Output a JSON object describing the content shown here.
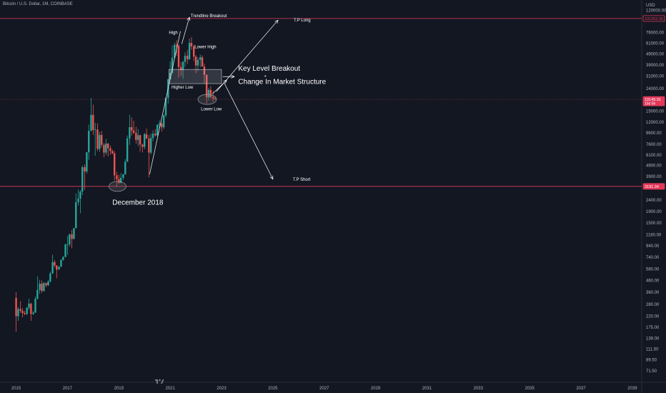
{
  "header": {
    "symbol_title": "Bitcoin / U.S. Dollar, 1M, COINBASE"
  },
  "colors": {
    "background": "#131722",
    "up": "#26a69a",
    "down": "#ef5350",
    "level_line": "#e3385a",
    "current_line": "#7a2f3a",
    "annotation": "#ffffff",
    "axis_text": "#b2b5be"
  },
  "chart_data": {
    "type": "candlestick",
    "y_scale": "log",
    "y_unit": "USD",
    "ylim": [
      62,
      130000
    ],
    "xlim": [
      2014.5,
      2040.2
    ],
    "y_ticks": [
      "120000.00",
      "76000.00",
      "61000.00",
      "49000.00",
      "39000.00",
      "31000.00",
      "24000.00",
      "15000.00",
      "12000.00",
      "9600.00",
      "7600.00",
      "6100.00",
      "4900.00",
      "3900.00",
      "2400.00",
      "1900.00",
      "1500.00",
      "1180.00",
      "940.00",
      "740.00",
      "580.00",
      "460.00",
      "360.00",
      "280.00",
      "220.00",
      "175.00",
      "139.00",
      "111.50",
      "89.50",
      "71.50"
    ],
    "x_ticks": [
      "2015",
      "2017",
      "2019",
      "2021",
      "2023",
      "2025",
      "2027",
      "2029",
      "2031",
      "2033",
      "2035",
      "2037",
      "2039"
    ],
    "price_tags": [
      {
        "label": "101353.06",
        "value": 101353.06,
        "style": "outline"
      },
      {
        "label": "19149.91",
        "sublabel": "15d 5h",
        "value": 19149.91,
        "style": "filled"
      },
      {
        "label": "3191.34",
        "value": 3191.34,
        "style": "filled"
      }
    ],
    "annotations": {
      "high": "High",
      "trendline_breakout": "Trendline Breakout",
      "tp_long": "T.P Long",
      "lower_high": "Lower High",
      "key_level_breakout": "Key Level Breakout",
      "plus": "+",
      "change_in_structure": "Change In Market Structure",
      "higher_low": "Higher Low",
      "lower_low": "Lower Low",
      "tp_short": "T.P Short",
      "december_2018": "December 2018"
    },
    "points": {
      "tp_long": [
        2025.2,
        98000
      ],
      "tp_short": [
        2025.0,
        3700
      ],
      "trend_start": [
        2020.2,
        4100
      ],
      "trend_end": [
        2021.4,
        78000
      ],
      "low_2018": [
        2018.95,
        3190
      ],
      "low_2022": [
        2022.5,
        19149.91
      ],
      "key_box": {
        "x0": 2020.95,
        "x1": 2023.0,
        "y0": 26500,
        "y1": 35500
      }
    },
    "candles": [
      {
        "t": 2015.0,
        "o": 320,
        "h": 360,
        "l": 160,
        "c": 220
      },
      {
        "t": 2015.08,
        "o": 220,
        "h": 265,
        "l": 200,
        "c": 255
      },
      {
        "t": 2015.17,
        "o": 255,
        "h": 300,
        "l": 235,
        "c": 245
      },
      {
        "t": 2015.25,
        "o": 245,
        "h": 260,
        "l": 215,
        "c": 235
      },
      {
        "t": 2015.33,
        "o": 235,
        "h": 245,
        "l": 225,
        "c": 230
      },
      {
        "t": 2015.42,
        "o": 230,
        "h": 265,
        "l": 225,
        "c": 262
      },
      {
        "t": 2015.5,
        "o": 262,
        "h": 315,
        "l": 250,
        "c": 285
      },
      {
        "t": 2015.58,
        "o": 285,
        "h": 290,
        "l": 200,
        "c": 230
      },
      {
        "t": 2015.67,
        "o": 230,
        "h": 245,
        "l": 225,
        "c": 237
      },
      {
        "t": 2015.75,
        "o": 237,
        "h": 330,
        "l": 235,
        "c": 315
      },
      {
        "t": 2015.83,
        "o": 315,
        "h": 500,
        "l": 310,
        "c": 378
      },
      {
        "t": 2015.92,
        "o": 378,
        "h": 465,
        "l": 350,
        "c": 430
      },
      {
        "t": 2016.0,
        "o": 430,
        "h": 460,
        "l": 355,
        "c": 370
      },
      {
        "t": 2016.08,
        "o": 370,
        "h": 445,
        "l": 365,
        "c": 435
      },
      {
        "t": 2016.17,
        "o": 435,
        "h": 440,
        "l": 400,
        "c": 415
      },
      {
        "t": 2016.25,
        "o": 415,
        "h": 465,
        "l": 410,
        "c": 450
      },
      {
        "t": 2016.33,
        "o": 450,
        "h": 550,
        "l": 440,
        "c": 530
      },
      {
        "t": 2016.42,
        "o": 530,
        "h": 780,
        "l": 525,
        "c": 670
      },
      {
        "t": 2016.5,
        "o": 670,
        "h": 700,
        "l": 600,
        "c": 625
      },
      {
        "t": 2016.58,
        "o": 625,
        "h": 630,
        "l": 480,
        "c": 575
      },
      {
        "t": 2016.67,
        "o": 575,
        "h": 615,
        "l": 570,
        "c": 610
      },
      {
        "t": 2016.75,
        "o": 610,
        "h": 710,
        "l": 605,
        "c": 700
      },
      {
        "t": 2016.83,
        "o": 700,
        "h": 760,
        "l": 690,
        "c": 745
      },
      {
        "t": 2016.92,
        "o": 745,
        "h": 980,
        "l": 740,
        "c": 965
      },
      {
        "t": 2017.0,
        "o": 965,
        "h": 1150,
        "l": 780,
        "c": 965
      },
      {
        "t": 2017.08,
        "o": 965,
        "h": 1200,
        "l": 920,
        "c": 1190
      },
      {
        "t": 2017.17,
        "o": 1190,
        "h": 1300,
        "l": 890,
        "c": 1080
      },
      {
        "t": 2017.25,
        "o": 1080,
        "h": 1350,
        "l": 1070,
        "c": 1350
      },
      {
        "t": 2017.33,
        "o": 1350,
        "h": 2760,
        "l": 1340,
        "c": 2300
      },
      {
        "t": 2017.42,
        "o": 2300,
        "h": 3000,
        "l": 2150,
        "c": 2480
      },
      {
        "t": 2017.5,
        "o": 2480,
        "h": 2950,
        "l": 1830,
        "c": 2870
      },
      {
        "t": 2017.58,
        "o": 2870,
        "h": 4900,
        "l": 2670,
        "c": 4740
      },
      {
        "t": 2017.67,
        "o": 4740,
        "h": 5000,
        "l": 2970,
        "c": 4340
      },
      {
        "t": 2017.75,
        "o": 4340,
        "h": 6450,
        "l": 4160,
        "c": 6440
      },
      {
        "t": 2017.83,
        "o": 6440,
        "h": 11400,
        "l": 5500,
        "c": 10000
      },
      {
        "t": 2017.92,
        "o": 10000,
        "h": 19700,
        "l": 10000,
        "c": 13900
      },
      {
        "t": 2018.0,
        "o": 13900,
        "h": 17200,
        "l": 9200,
        "c": 10200
      },
      {
        "t": 2018.08,
        "o": 10200,
        "h": 11800,
        "l": 6000,
        "c": 10300
      },
      {
        "t": 2018.17,
        "o": 10300,
        "h": 11700,
        "l": 6600,
        "c": 6900
      },
      {
        "t": 2018.25,
        "o": 6900,
        "h": 9800,
        "l": 6500,
        "c": 9200
      },
      {
        "t": 2018.33,
        "o": 9200,
        "h": 10000,
        "l": 7100,
        "c": 7500
      },
      {
        "t": 2018.42,
        "o": 7500,
        "h": 7800,
        "l": 5800,
        "c": 6400
      },
      {
        "t": 2018.5,
        "o": 6400,
        "h": 8500,
        "l": 6100,
        "c": 7700
      },
      {
        "t": 2018.58,
        "o": 7700,
        "h": 7800,
        "l": 5900,
        "c": 7000
      },
      {
        "t": 2018.67,
        "o": 7000,
        "h": 7400,
        "l": 6100,
        "c": 6600
      },
      {
        "t": 2018.75,
        "o": 6600,
        "h": 6800,
        "l": 6200,
        "c": 6300
      },
      {
        "t": 2018.83,
        "o": 6300,
        "h": 6600,
        "l": 3600,
        "c": 4000
      },
      {
        "t": 2018.92,
        "o": 4000,
        "h": 4300,
        "l": 3150,
        "c": 3700
      },
      {
        "t": 2019.0,
        "o": 3700,
        "h": 4050,
        "l": 3350,
        "c": 3430
      },
      {
        "t": 2019.08,
        "o": 3430,
        "h": 4200,
        "l": 3390,
        "c": 3800
      },
      {
        "t": 2019.17,
        "o": 3800,
        "h": 4100,
        "l": 3650,
        "c": 4100
      },
      {
        "t": 2019.25,
        "o": 4100,
        "h": 5600,
        "l": 4050,
        "c": 5300
      },
      {
        "t": 2019.33,
        "o": 5300,
        "h": 9100,
        "l": 5300,
        "c": 8570
      },
      {
        "t": 2019.42,
        "o": 8570,
        "h": 13900,
        "l": 7500,
        "c": 10800
      },
      {
        "t": 2019.5,
        "o": 10800,
        "h": 13200,
        "l": 9100,
        "c": 10100
      },
      {
        "t": 2019.58,
        "o": 10100,
        "h": 12300,
        "l": 9400,
        "c": 9600
      },
      {
        "t": 2019.67,
        "o": 9600,
        "h": 10900,
        "l": 7700,
        "c": 8300
      },
      {
        "t": 2019.75,
        "o": 8300,
        "h": 10400,
        "l": 7300,
        "c": 9150
      },
      {
        "t": 2019.83,
        "o": 9150,
        "h": 9300,
        "l": 6500,
        "c": 7550
      },
      {
        "t": 2019.92,
        "o": 7550,
        "h": 7700,
        "l": 6400,
        "c": 7200
      },
      {
        "t": 2020.0,
        "o": 7200,
        "h": 9600,
        "l": 6850,
        "c": 9350
      },
      {
        "t": 2020.08,
        "o": 9350,
        "h": 10500,
        "l": 8450,
        "c": 8550
      },
      {
        "t": 2020.17,
        "o": 8550,
        "h": 9200,
        "l": 3850,
        "c": 6400
      },
      {
        "t": 2020.25,
        "o": 6400,
        "h": 9500,
        "l": 6150,
        "c": 8630
      },
      {
        "t": 2020.33,
        "o": 8630,
        "h": 10100,
        "l": 8100,
        "c": 9450
      },
      {
        "t": 2020.42,
        "o": 9450,
        "h": 10400,
        "l": 8900,
        "c": 9140
      },
      {
        "t": 2020.5,
        "o": 9140,
        "h": 11450,
        "l": 8950,
        "c": 11350
      },
      {
        "t": 2020.58,
        "o": 11350,
        "h": 12450,
        "l": 10550,
        "c": 11650
      },
      {
        "t": 2020.67,
        "o": 11650,
        "h": 12050,
        "l": 9850,
        "c": 10780
      },
      {
        "t": 2020.75,
        "o": 10780,
        "h": 14100,
        "l": 10400,
        "c": 13800
      },
      {
        "t": 2020.83,
        "o": 13800,
        "h": 19900,
        "l": 13200,
        "c": 19700
      },
      {
        "t": 2020.92,
        "o": 19700,
        "h": 29300,
        "l": 17600,
        "c": 29000
      },
      {
        "t": 2021.0,
        "o": 29000,
        "h": 41900,
        "l": 28700,
        "c": 33100
      },
      {
        "t": 2021.08,
        "o": 33100,
        "h": 58300,
        "l": 32400,
        "c": 45200
      },
      {
        "t": 2021.17,
        "o": 45200,
        "h": 61700,
        "l": 45000,
        "c": 58800
      },
      {
        "t": 2021.25,
        "o": 58800,
        "h": 64800,
        "l": 47000,
        "c": 57700
      },
      {
        "t": 2021.33,
        "o": 57700,
        "h": 59500,
        "l": 30000,
        "c": 37300
      },
      {
        "t": 2021.42,
        "o": 37300,
        "h": 41300,
        "l": 31000,
        "c": 35000
      },
      {
        "t": 2021.5,
        "o": 35000,
        "h": 42300,
        "l": 29300,
        "c": 41500
      },
      {
        "t": 2021.58,
        "o": 41500,
        "h": 50500,
        "l": 37300,
        "c": 47100
      },
      {
        "t": 2021.67,
        "o": 47100,
        "h": 52900,
        "l": 39600,
        "c": 43800
      },
      {
        "t": 2021.75,
        "o": 43800,
        "h": 67000,
        "l": 43200,
        "c": 61300
      },
      {
        "t": 2021.83,
        "o": 61300,
        "h": 69000,
        "l": 53200,
        "c": 57000
      },
      {
        "t": 2021.92,
        "o": 57000,
        "h": 59100,
        "l": 42000,
        "c": 46200
      },
      {
        "t": 2022.0,
        "o": 46200,
        "h": 47900,
        "l": 32900,
        "c": 38500
      },
      {
        "t": 2022.08,
        "o": 38500,
        "h": 45800,
        "l": 34300,
        "c": 43200
      },
      {
        "t": 2022.17,
        "o": 43200,
        "h": 48200,
        "l": 37200,
        "c": 45500
      },
      {
        "t": 2022.25,
        "o": 45500,
        "h": 47400,
        "l": 37600,
        "c": 37700
      },
      {
        "t": 2022.33,
        "o": 37700,
        "h": 40000,
        "l": 26700,
        "c": 31800
      },
      {
        "t": 2022.42,
        "o": 31800,
        "h": 31900,
        "l": 17600,
        "c": 19950
      },
      {
        "t": 2022.5,
        "o": 19950,
        "h": 24300,
        "l": 18800,
        "c": 23300
      },
      {
        "t": 2022.58,
        "o": 23300,
        "h": 25200,
        "l": 19600,
        "c": 20050
      },
      {
        "t": 2022.67,
        "o": 20050,
        "h": 22800,
        "l": 18200,
        "c": 19420
      },
      {
        "t": 2022.75,
        "o": 19420,
        "h": 20500,
        "l": 18900,
        "c": 19149.91
      }
    ]
  }
}
